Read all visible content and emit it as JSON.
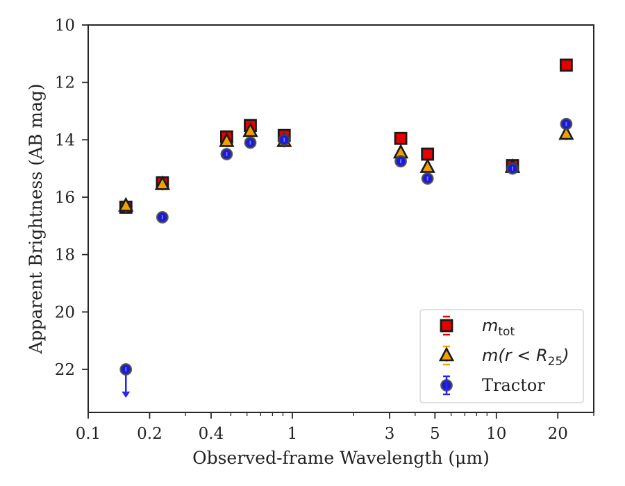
{
  "chart_data": {
    "type": "scatter",
    "xlabel": "Observed-frame Wavelength (μm)",
    "ylabel": "Apparent Brightness (AB mag)",
    "xscale": "log",
    "xlim": [
      0.1,
      30
    ],
    "ylim": [
      23.5,
      10
    ],
    "y_inverted": true,
    "x_ticks": [
      0.1,
      0.2,
      0.4,
      1,
      3,
      5,
      10,
      20
    ],
    "x_tick_labels": [
      "0.1",
      "0.2",
      "0.4",
      "1",
      "3",
      "5",
      "10",
      "20"
    ],
    "y_ticks": [
      10,
      12,
      14,
      16,
      18,
      20,
      22
    ],
    "y_tick_labels": [
      "10",
      "12",
      "14",
      "16",
      "18",
      "20",
      "22"
    ],
    "grid": false,
    "legend_position": "lower-right",
    "series": [
      {
        "name": "m_tot",
        "legend_main": "m",
        "legend_sub": "tot",
        "marker": "square",
        "fill": "#e60000",
        "error_color": "#e60000",
        "points": [
          {
            "x": 0.153,
            "y": 16.35
          },
          {
            "x": 0.231,
            "y": 15.5
          },
          {
            "x": 0.477,
            "y": 13.9
          },
          {
            "x": 0.623,
            "y": 13.5
          },
          {
            "x": 0.913,
            "y": 13.85
          },
          {
            "x": 3.4,
            "y": 13.95
          },
          {
            "x": 4.6,
            "y": 14.5
          },
          {
            "x": 12.0,
            "y": 14.9
          },
          {
            "x": 22.0,
            "y": 11.4
          }
        ]
      },
      {
        "name": "m(r < R25)",
        "legend_main": "m(r < R",
        "legend_sub": "25",
        "legend_tail": ")",
        "marker": "triangle",
        "fill": "#f0a000",
        "error_color": "#f0a000",
        "points": [
          {
            "x": 0.153,
            "y": 16.3
          },
          {
            "x": 0.231,
            "y": 15.55
          },
          {
            "x": 0.477,
            "y": 14.05
          },
          {
            "x": 0.623,
            "y": 13.7
          },
          {
            "x": 0.913,
            "y": 14.05
          },
          {
            "x": 3.4,
            "y": 14.45
          },
          {
            "x": 4.6,
            "y": 14.95
          },
          {
            "x": 12.0,
            "y": 14.95
          },
          {
            "x": 22.0,
            "y": 13.8
          }
        ]
      },
      {
        "name": "Tractor",
        "legend_main": "Tractor",
        "marker": "circle",
        "fill": "#1a1adc",
        "error_color": "#2a2ae6",
        "points": [
          {
            "x": 0.153,
            "y": 22.0,
            "upper_limit": true
          },
          {
            "x": 0.231,
            "y": 16.7
          },
          {
            "x": 0.477,
            "y": 14.5
          },
          {
            "x": 0.623,
            "y": 14.1
          },
          {
            "x": 0.913,
            "y": 14.0
          },
          {
            "x": 3.4,
            "y": 14.75
          },
          {
            "x": 4.6,
            "y": 15.35
          },
          {
            "x": 12.0,
            "y": 15.0
          },
          {
            "x": 22.0,
            "y": 13.45
          }
        ]
      }
    ]
  }
}
